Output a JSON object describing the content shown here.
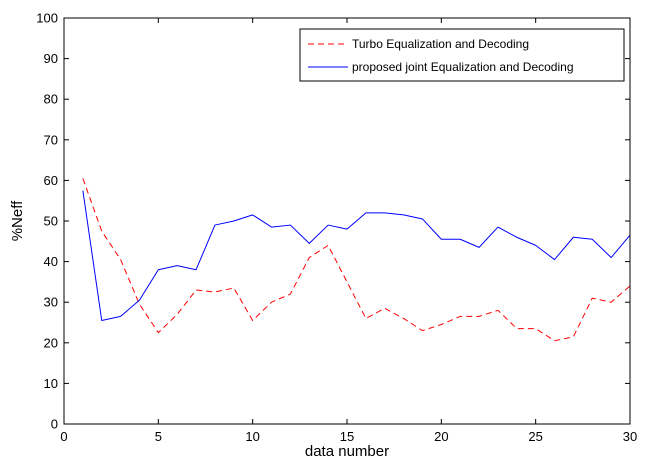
{
  "chart_data": {
    "type": "line",
    "title": "",
    "xlabel": "data number",
    "ylabel": "%Neff",
    "xlim": [
      0,
      30
    ],
    "ylim": [
      0,
      100
    ],
    "xticks": [
      0,
      5,
      10,
      15,
      20,
      25,
      30
    ],
    "yticks": [
      0,
      10,
      20,
      30,
      40,
      50,
      60,
      70,
      80,
      90,
      100
    ],
    "grid": false,
    "legend_position": "top-right",
    "x": [
      1,
      2,
      3,
      4,
      5,
      6,
      7,
      8,
      9,
      10,
      11,
      12,
      13,
      14,
      15,
      16,
      17,
      18,
      19,
      20,
      21,
      22,
      23,
      24,
      25,
      26,
      27,
      28,
      29,
      30
    ],
    "series": [
      {
        "name": "Turbo Equalization and Decoding",
        "color": "#ff0000",
        "line_style": "dashed",
        "values": [
          60.5,
          47.5,
          40.5,
          29.5,
          22.5,
          27,
          33,
          32.5,
          33.5,
          25.5,
          30,
          32,
          41,
          44,
          35,
          26,
          28.5,
          26,
          23,
          24.5,
          26.5,
          26.5,
          28,
          23.5,
          23.5,
          20.5,
          21.5,
          31,
          30,
          34
        ]
      },
      {
        "name": "proposed joint Equalization and Decoding",
        "color": "#0000ff",
        "line_style": "solid",
        "values": [
          57.5,
          25.5,
          26.5,
          30.5,
          38,
          39,
          38,
          49,
          50,
          51.5,
          48.5,
          49,
          44.5,
          49,
          48,
          52,
          52,
          51.5,
          50.5,
          45.5,
          45.5,
          43.5,
          48.5,
          46,
          44,
          40.5,
          46,
          45.5,
          41,
          46.5
        ]
      }
    ]
  }
}
